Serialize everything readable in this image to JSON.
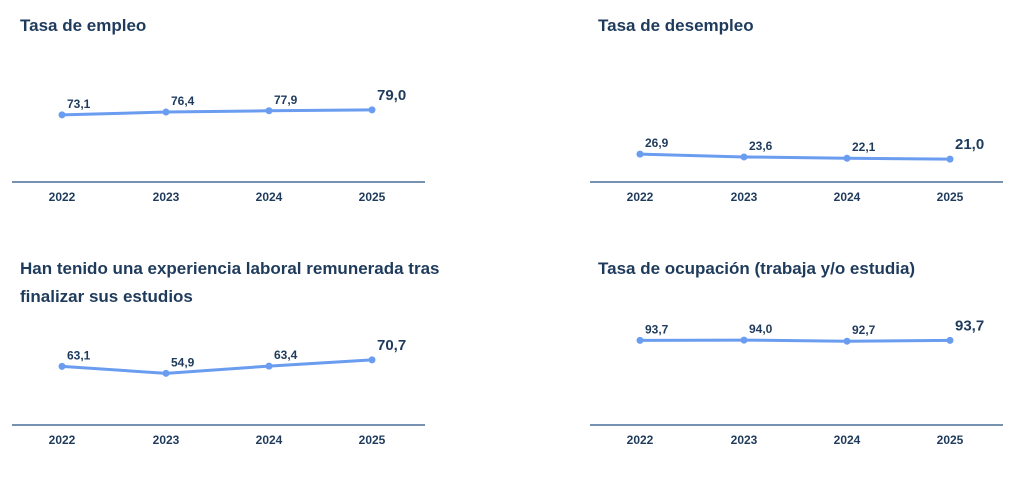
{
  "chart_data": [
    {
      "type": "line",
      "title": "Tasa de empleo",
      "categories": [
        "2022",
        "2023",
        "2024",
        "2025"
      ],
      "values": [
        73.1,
        76.4,
        77.9,
        79.0
      ],
      "labels": [
        "73,1",
        "76,4",
        "77,9",
        "79,0"
      ],
      "series_color": "#6a9cf0",
      "axis_color": "#4a6f95"
    },
    {
      "type": "line",
      "title": "Tasa de desempleo",
      "categories": [
        "2022",
        "2023",
        "2024",
        "2025"
      ],
      "values": [
        26.9,
        23.6,
        22.1,
        21.0
      ],
      "labels": [
        "26,9",
        "23,6",
        "22,1",
        "21,0"
      ],
      "series_color": "#6a9cf0",
      "axis_color": "#4a6f95"
    },
    {
      "type": "line",
      "title": "Han tenido una experiencia laboral remunerada tras finalizar sus estudios",
      "categories": [
        "2022",
        "2023",
        "2024",
        "2025"
      ],
      "values": [
        63.1,
        54.9,
        63.4,
        70.7
      ],
      "labels": [
        "63,1",
        "54,9",
        "63,4",
        "70,7"
      ],
      "series_color": "#6a9cf0",
      "axis_color": "#4a6f95"
    },
    {
      "type": "line",
      "title": "Tasa de ocupación (trabaja y/o estudia)",
      "categories": [
        "2022",
        "2023",
        "2024",
        "2025"
      ],
      "values": [
        93.7,
        94.0,
        92.7,
        93.7
      ],
      "labels": [
        "93,7",
        "94,0",
        "92,7",
        "93,7"
      ],
      "series_color": "#6a9cf0",
      "axis_color": "#4a6f95"
    }
  ]
}
